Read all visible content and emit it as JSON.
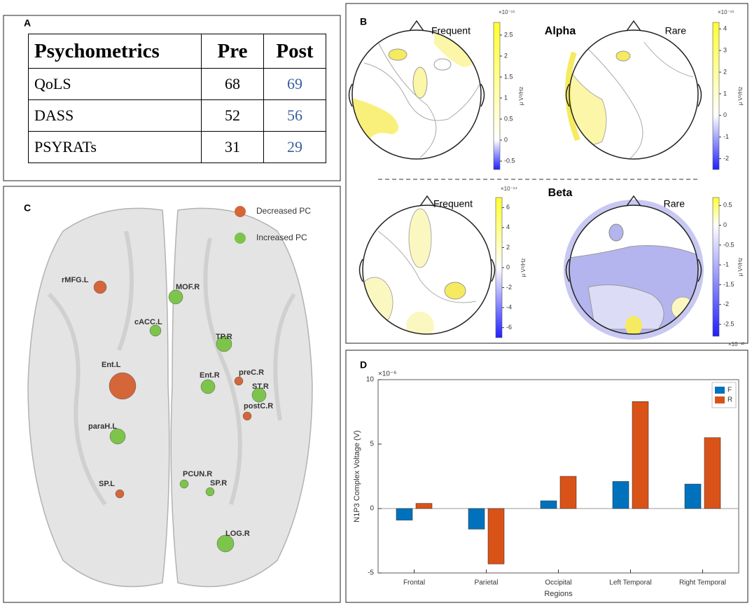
{
  "panel_a": {
    "label": "A",
    "table": {
      "header": [
        "Psychometrics",
        "Pre",
        "Post"
      ],
      "rows": [
        [
          "QoLS",
          68,
          69
        ],
        [
          "DASS",
          52,
          56
        ],
        [
          "PSYRATs",
          31,
          29
        ]
      ]
    }
  },
  "panel_b": {
    "label": "B",
    "alpha_title": "Alpha",
    "beta_title": "Beta",
    "low_color": "#2020ff",
    "high_color": "#ffff30",
    "maps": [
      {
        "title": "Frequent",
        "colorbar": {
          "exponent": "×10⁻¹⁵",
          "unit": "μ V²/Hz",
          "lim": [
            -0.7,
            2.8
          ],
          "ticks": [
            -0.5,
            0,
            0.5,
            1,
            1.5,
            2,
            2.5
          ]
        }
      },
      {
        "title": "Rare",
        "colorbar": {
          "exponent": "×10⁻¹⁵",
          "unit": "μ V²/Hz",
          "lim": [
            -2.5,
            4.3
          ],
          "ticks": [
            -2,
            -1,
            0,
            1,
            2,
            3,
            4
          ]
        }
      },
      {
        "title": "Frequent",
        "colorbar": {
          "exponent": "×10⁻¹⁴",
          "unit": "μ V²/Hz",
          "lim": [
            -7,
            7
          ],
          "ticks": [
            -6,
            -4,
            -2,
            0,
            2,
            4,
            6
          ]
        }
      },
      {
        "title": "Rare",
        "colorbar": {
          "exponent": "×10⁻¹³",
          "unit": "μ V²/Hz",
          "lim": [
            -2.8,
            0.7
          ],
          "ticks": [
            -2.5,
            -2,
            -1.5,
            -1,
            -0.5,
            0,
            0.5
          ]
        }
      }
    ]
  },
  "panel_c": {
    "label": "C",
    "groups": [
      {
        "name": "Decreased PC",
        "color": "#d4663a",
        "nodes": [
          "rMFG.L",
          "Ent.L",
          "preC.R",
          "postC.R",
          "SP.L"
        ]
      },
      {
        "name": "Increased PC",
        "color": "#7cc44a",
        "nodes": [
          "MOF.R",
          "cACC.L",
          "TP.R",
          "Ent.R",
          "ST.R",
          "paraH.L",
          "PCUN.R",
          "SP.R",
          "LOG.R"
        ]
      }
    ]
  },
  "chart_data": {
    "type": "bar",
    "panel_label": "D",
    "y_exponent": "×10⁻⁶",
    "ylabel": "N1P3 Complex Voltage (V)",
    "xlabel": "Regions",
    "categories": [
      "Frontal",
      "Parietal",
      "Occipital",
      "Left Temporal",
      "Right Temporal"
    ],
    "series": [
      {
        "name": "F",
        "color": "#0072bd",
        "values": [
          -0.9,
          -1.6,
          0.6,
          2.1,
          1.9
        ]
      },
      {
        "name": "R",
        "color": "#d95319",
        "values": [
          0.4,
          -4.3,
          2.5,
          8.3,
          5.5
        ]
      }
    ],
    "ylim": [
      -5,
      10
    ],
    "yticks": [
      -5,
      0,
      5,
      10
    ],
    "legend": "upper right"
  }
}
